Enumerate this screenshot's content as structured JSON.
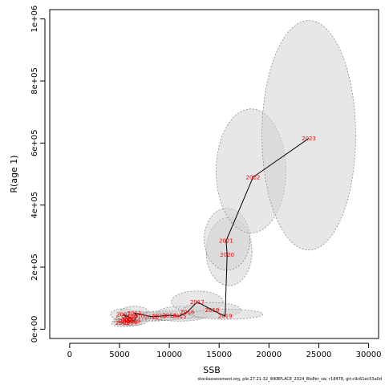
{
  "footer": "stockassessment.org, ple.27.21-32_WKBPLACE_2024_BloPer_sw, r18478, git:c9c61ec53a0d",
  "chart_data": {
    "type": "scatter",
    "xlabel": "SSB",
    "ylabel": "R(age 1)",
    "xlim": [
      -2000,
      31000
    ],
    "ylim": [
      -30000,
      1030000
    ],
    "x_ticks": [
      {
        "v": 0,
        "label": "0"
      },
      {
        "v": 5000,
        "label": "5000"
      },
      {
        "v": 10000,
        "label": "10000"
      },
      {
        "v": 15000,
        "label": "15000"
      },
      {
        "v": 20000,
        "label": "20000"
      },
      {
        "v": 25000,
        "label": "25000"
      },
      {
        "v": 30000,
        "label": "30000"
      }
    ],
    "y_ticks": [
      {
        "v": 0,
        "label": "0e+00"
      },
      {
        "v": 200000,
        "label": "2e+05"
      },
      {
        "v": 400000,
        "label": "4e+05"
      },
      {
        "v": 600000,
        "label": "6e+05"
      },
      {
        "v": 800000,
        "label": "8e+05"
      },
      {
        "v": 1000000,
        "label": "1e+06"
      }
    ],
    "points": [
      {
        "year": "2002",
        "x": 5300,
        "y": 20000
      },
      {
        "year": "2003",
        "x": 5500,
        "y": 28000
      },
      {
        "year": "2004",
        "x": 5700,
        "y": 25000
      },
      {
        "year": "2005",
        "x": 5900,
        "y": 32000
      },
      {
        "year": "2006",
        "x": 6100,
        "y": 22000
      },
      {
        "year": "2007",
        "x": 5400,
        "y": 48000
      },
      {
        "year": "2008",
        "x": 6000,
        "y": 38000
      },
      {
        "year": "2009",
        "x": 6400,
        "y": 26000
      },
      {
        "year": "2010",
        "x": 6800,
        "y": 42000
      },
      {
        "year": "2011",
        "x": 6500,
        "y": 52000
      },
      {
        "year": "2012",
        "x": 8200,
        "y": 40000
      },
      {
        "year": "2013",
        "x": 9000,
        "y": 42000
      },
      {
        "year": "2014",
        "x": 10000,
        "y": 45000
      },
      {
        "year": "2015",
        "x": 11000,
        "y": 42000
      },
      {
        "year": "2016",
        "x": 11800,
        "y": 55000
      },
      {
        "year": "2017",
        "x": 12800,
        "y": 88000
      },
      {
        "year": "2018",
        "x": 14300,
        "y": 62000
      },
      {
        "year": "2019",
        "x": 15600,
        "y": 42000
      },
      {
        "year": "2020",
        "x": 15800,
        "y": 240000
      },
      {
        "year": "2021",
        "x": 15700,
        "y": 285000
      },
      {
        "year": "2022",
        "x": 18400,
        "y": 490000
      },
      {
        "year": "2023",
        "x": 24000,
        "y": 615000
      }
    ],
    "ellipses": [
      {
        "year": "2002",
        "cx": 5300,
        "cy": 20000,
        "rx": 1100,
        "ry": 12000,
        "angle": 0
      },
      {
        "year": "2003",
        "cx": 5500,
        "cy": 28000,
        "rx": 1100,
        "ry": 14000,
        "angle": 0
      },
      {
        "year": "2004",
        "cx": 5700,
        "cy": 25000,
        "rx": 1200,
        "ry": 13000,
        "angle": 0
      },
      {
        "year": "2005",
        "cx": 5900,
        "cy": 32000,
        "rx": 1200,
        "ry": 15000,
        "angle": 0
      },
      {
        "year": "2006",
        "cx": 6100,
        "cy": 22000,
        "rx": 1200,
        "ry": 12000,
        "angle": 0
      },
      {
        "year": "2007",
        "cx": 5400,
        "cy": 48000,
        "rx": 1300,
        "ry": 18000,
        "angle": 0
      },
      {
        "year": "2008",
        "cx": 6000,
        "cy": 38000,
        "rx": 1300,
        "ry": 16000,
        "angle": 0
      },
      {
        "year": "2009",
        "cx": 6400,
        "cy": 26000,
        "rx": 1400,
        "ry": 13000,
        "angle": 0
      },
      {
        "year": "2010",
        "cx": 6800,
        "cy": 42000,
        "rx": 1500,
        "ry": 17000,
        "angle": 0
      },
      {
        "year": "2011",
        "cx": 6500,
        "cy": 52000,
        "rx": 1500,
        "ry": 22000,
        "angle": 0
      },
      {
        "year": "2012",
        "cx": 8200,
        "cy": 40000,
        "rx": 2300,
        "ry": 14000,
        "angle": 0
      },
      {
        "year": "2013",
        "cx": 9000,
        "cy": 42000,
        "rx": 2500,
        "ry": 14000,
        "angle": 0
      },
      {
        "year": "2014",
        "cx": 10000,
        "cy": 45000,
        "rx": 2600,
        "ry": 16000,
        "angle": 0
      },
      {
        "year": "2015",
        "cx": 11000,
        "cy": 42000,
        "rx": 2700,
        "ry": 16000,
        "angle": 0
      },
      {
        "year": "2016",
        "cx": 11800,
        "cy": 55000,
        "rx": 2900,
        "ry": 20000,
        "angle": 0
      },
      {
        "year": "2017",
        "cx": 12800,
        "cy": 88000,
        "rx": 2600,
        "ry": 35000,
        "angle": 0
      },
      {
        "year": "2018",
        "cx": 14300,
        "cy": 62000,
        "rx": 2900,
        "ry": 24000,
        "angle": 0
      },
      {
        "year": "2019",
        "cx": 15700,
        "cy": 48000,
        "rx": 3700,
        "ry": 16000,
        "angle": 0
      },
      {
        "year": "2020",
        "cx": 16000,
        "cy": 250000,
        "rx": 2300,
        "ry": 110000,
        "angle": 0
      },
      {
        "year": "2021",
        "cx": 15800,
        "cy": 290000,
        "rx": 2300,
        "ry": 100000,
        "angle": 0
      },
      {
        "year": "2022",
        "cx": 18200,
        "cy": 510000,
        "rx": 3500,
        "ry": 200000,
        "angle": 0
      },
      {
        "year": "2023",
        "cx": 24000,
        "cy": 625000,
        "rx": 4700,
        "ry": 370000,
        "angle": 0
      }
    ],
    "line": {
      "color": "#000000"
    },
    "label_color": "#ff0000",
    "ellipse_fill": "#d3d3d3",
    "ellipse_stroke": "#7f7f7f"
  }
}
